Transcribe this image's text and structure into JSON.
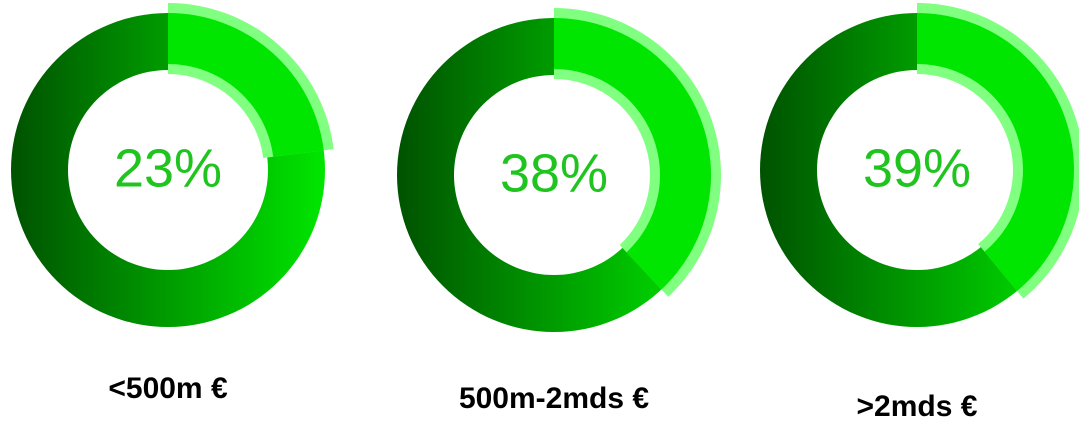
{
  "chart_data": [
    {
      "type": "donut",
      "title": "<500m €",
      "values": [
        23
      ],
      "value_labels": [
        "23%"
      ]
    },
    {
      "type": "donut",
      "title": "500m-2mds €",
      "values": [
        38
      ],
      "value_labels": [
        "38%"
      ]
    },
    {
      "type": "donut",
      "title": ">2mds €",
      "values": [
        39
      ],
      "value_labels": [
        "39%"
      ]
    }
  ]
}
